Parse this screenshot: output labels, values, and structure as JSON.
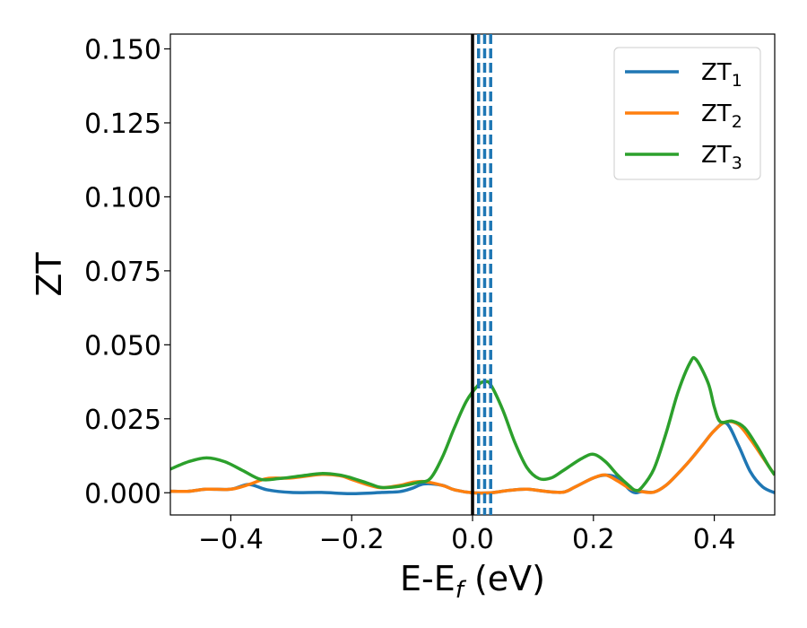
{
  "chart_data": {
    "type": "line",
    "xlabel": {
      "main": "E-E",
      "sub": "f",
      "unit": " (eV)"
    },
    "ylabel": "ZT",
    "xlim": [
      -0.5,
      0.5
    ],
    "ylim": [
      -0.0075,
      0.155
    ],
    "grid": false,
    "legend_position": "top-right",
    "x_ticks": [
      -0.4,
      -0.2,
      0.0,
      0.2,
      0.4
    ],
    "x_tick_labels": [
      "−0.4",
      "−0.2",
      "0.0",
      "0.2",
      "0.4"
    ],
    "y_ticks": [
      0.0,
      0.025,
      0.05,
      0.075,
      0.1,
      0.125,
      0.15
    ],
    "y_tick_labels": [
      "0.000",
      "0.025",
      "0.050",
      "0.075",
      "0.100",
      "0.125",
      "0.150"
    ],
    "vertical_lines": [
      {
        "x": 0.0,
        "style": "solid",
        "color": "#000000"
      },
      {
        "x": 0.01,
        "style": "dashed",
        "color": "#1f77b4"
      },
      {
        "x": 0.02,
        "style": "dashed",
        "color": "#1f77b4"
      },
      {
        "x": 0.03,
        "style": "dashed",
        "color": "#1f77b4"
      }
    ],
    "series": [
      {
        "name": "ZT",
        "name_sub": "1",
        "color": "#1f77b4",
        "points": [
          [
            -0.5,
            0.0005
          ],
          [
            -0.47,
            0.0005
          ],
          [
            -0.44,
            0.0012
          ],
          [
            -0.4,
            0.0012
          ],
          [
            -0.37,
            0.0028
          ],
          [
            -0.34,
            0.001
          ],
          [
            -0.3,
            0.0001
          ],
          [
            -0.25,
            0.0001
          ],
          [
            -0.2,
            -0.0003
          ],
          [
            -0.15,
            0.0001
          ],
          [
            -0.12,
            0.0004
          ],
          [
            -0.1,
            0.0015
          ],
          [
            -0.08,
            0.003
          ],
          [
            -0.05,
            0.0025
          ],
          [
            -0.03,
            0.001
          ],
          [
            0.0,
            0.0
          ],
          [
            0.03,
            0.0
          ],
          [
            0.06,
            0.0008
          ],
          [
            0.09,
            0.0012
          ],
          [
            0.12,
            0.0005
          ],
          [
            0.15,
            0.0002
          ],
          [
            0.17,
            0.002
          ],
          [
            0.2,
            0.005
          ],
          [
            0.22,
            0.006
          ],
          [
            0.24,
            0.005
          ],
          [
            0.26,
            0.001
          ],
          [
            0.27,
            0.0
          ],
          [
            0.28,
            0.0004
          ],
          [
            0.3,
            0.0002
          ],
          [
            0.32,
            0.0025
          ],
          [
            0.34,
            0.0065
          ],
          [
            0.36,
            0.011
          ],
          [
            0.38,
            0.016
          ],
          [
            0.4,
            0.021
          ],
          [
            0.42,
            0.0235
          ],
          [
            0.44,
            0.016
          ],
          [
            0.46,
            0.007
          ],
          [
            0.48,
            0.002
          ],
          [
            0.5,
            0.0
          ]
        ]
      },
      {
        "name": "ZT",
        "name_sub": "2",
        "color": "#ff7f0e",
        "points": [
          [
            -0.5,
            0.0005
          ],
          [
            -0.47,
            0.0005
          ],
          [
            -0.44,
            0.0012
          ],
          [
            -0.4,
            0.0012
          ],
          [
            -0.37,
            0.0028
          ],
          [
            -0.34,
            0.0048
          ],
          [
            -0.3,
            0.005
          ],
          [
            -0.25,
            0.0062
          ],
          [
            -0.22,
            0.0058
          ],
          [
            -0.2,
            0.0045
          ],
          [
            -0.17,
            0.0025
          ],
          [
            -0.15,
            0.0017
          ],
          [
            -0.12,
            0.0025
          ],
          [
            -0.1,
            0.0035
          ],
          [
            -0.08,
            0.0038
          ],
          [
            -0.05,
            0.0025
          ],
          [
            -0.03,
            0.001
          ],
          [
            0.0,
            0.0
          ],
          [
            0.03,
            0.0
          ],
          [
            0.06,
            0.0008
          ],
          [
            0.09,
            0.0012
          ],
          [
            0.12,
            0.0005
          ],
          [
            0.15,
            0.0002
          ],
          [
            0.17,
            0.002
          ],
          [
            0.2,
            0.005
          ],
          [
            0.22,
            0.006
          ],
          [
            0.24,
            0.004
          ],
          [
            0.26,
            0.0015
          ],
          [
            0.28,
            0.0004
          ],
          [
            0.3,
            0.0002
          ],
          [
            0.32,
            0.0025
          ],
          [
            0.34,
            0.0065
          ],
          [
            0.36,
            0.011
          ],
          [
            0.38,
            0.016
          ],
          [
            0.4,
            0.021
          ],
          [
            0.42,
            0.024
          ],
          [
            0.44,
            0.023
          ],
          [
            0.46,
            0.018
          ],
          [
            0.48,
            0.012
          ],
          [
            0.5,
            0.006
          ]
        ]
      },
      {
        "name": "ZT",
        "name_sub": "3",
        "color": "#2ca02c",
        "points": [
          [
            -0.5,
            0.008
          ],
          [
            -0.47,
            0.0105
          ],
          [
            -0.44,
            0.0118
          ],
          [
            -0.41,
            0.0105
          ],
          [
            -0.38,
            0.0075
          ],
          [
            -0.35,
            0.0045
          ],
          [
            -0.32,
            0.0048
          ],
          [
            -0.28,
            0.0058
          ],
          [
            -0.25,
            0.0065
          ],
          [
            -0.22,
            0.006
          ],
          [
            -0.2,
            0.005
          ],
          [
            -0.17,
            0.003
          ],
          [
            -0.15,
            0.0018
          ],
          [
            -0.12,
            0.0022
          ],
          [
            -0.09,
            0.0035
          ],
          [
            -0.07,
            0.0048
          ],
          [
            -0.05,
            0.012
          ],
          [
            -0.03,
            0.022
          ],
          [
            -0.01,
            0.031
          ],
          [
            0.01,
            0.0365
          ],
          [
            0.02,
            0.0375
          ],
          [
            0.03,
            0.0365
          ],
          [
            0.05,
            0.028
          ],
          [
            0.07,
            0.017
          ],
          [
            0.09,
            0.0085
          ],
          [
            0.11,
            0.0048
          ],
          [
            0.13,
            0.005
          ],
          [
            0.15,
            0.0075
          ],
          [
            0.18,
            0.0115
          ],
          [
            0.2,
            0.013
          ],
          [
            0.22,
            0.0105
          ],
          [
            0.24,
            0.006
          ],
          [
            0.26,
            0.0022
          ],
          [
            0.27,
            0.0008
          ],
          [
            0.28,
            0.0018
          ],
          [
            0.3,
            0.008
          ],
          [
            0.32,
            0.02
          ],
          [
            0.34,
            0.034
          ],
          [
            0.36,
            0.044
          ],
          [
            0.37,
            0.045
          ],
          [
            0.39,
            0.037
          ],
          [
            0.4,
            0.029
          ],
          [
            0.41,
            0.024
          ],
          [
            0.43,
            0.0242
          ],
          [
            0.45,
            0.022
          ],
          [
            0.47,
            0.016
          ],
          [
            0.49,
            0.009
          ],
          [
            0.5,
            0.006
          ]
        ]
      }
    ]
  }
}
